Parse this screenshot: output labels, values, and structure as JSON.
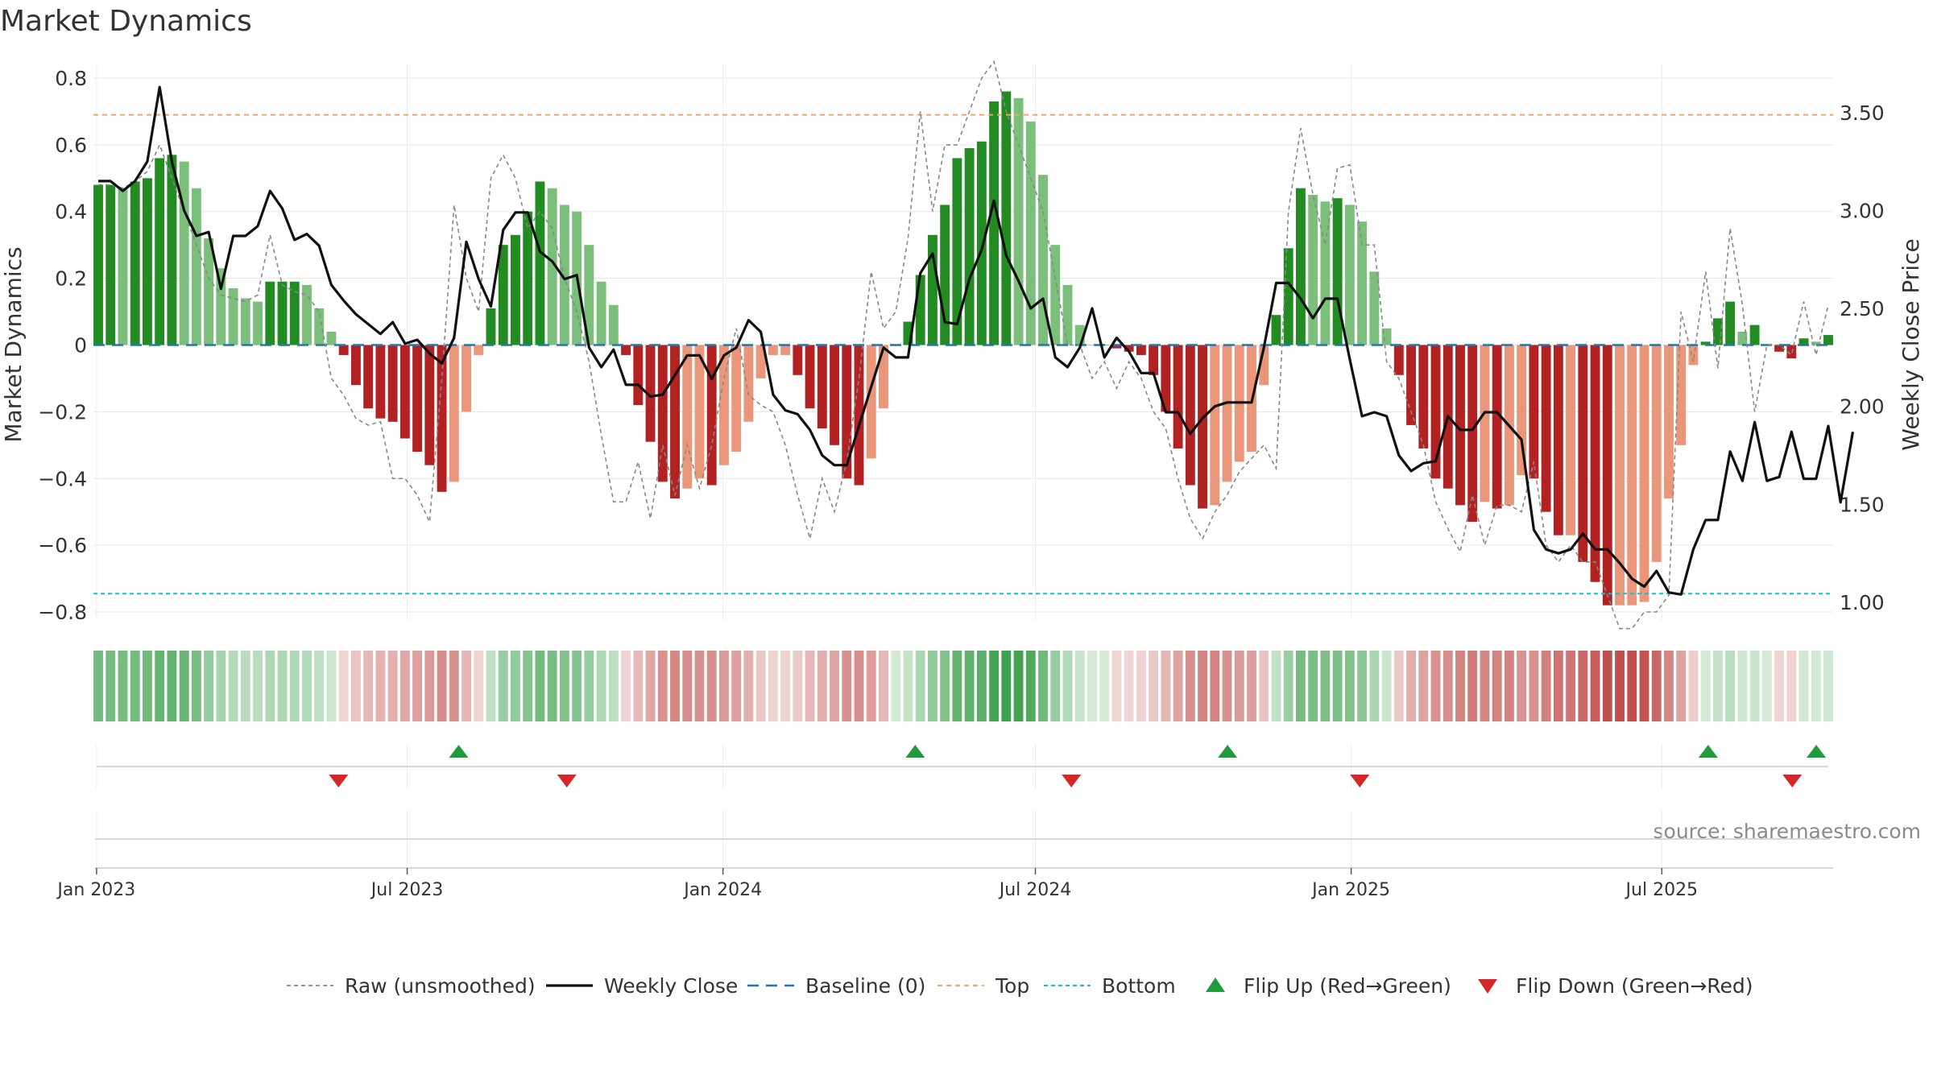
{
  "chart_data": {
    "type": "bar",
    "title": "Market Dynamics",
    "source": "source: sharemaestro.com",
    "y_left": {
      "label": "Market Dynamics",
      "range": [
        -0.85,
        0.8
      ],
      "ticks": [
        0.8,
        0.6,
        0.4,
        0.2,
        0,
        -0.2,
        -0.4,
        -0.6,
        -0.8
      ],
      "tick_labels": [
        "0.8",
        "0.6",
        "0.4",
        "0.2",
        "0",
        "−0.2",
        "−0.4",
        "−0.6",
        "−0.8"
      ]
    },
    "y_right": {
      "label": "Weekly Close Price",
      "range": [
        0.95,
        3.7
      ],
      "ticks": [
        3.5,
        3.0,
        2.5,
        2.0,
        1.5,
        1.0
      ],
      "tick_labels": [
        "3.50",
        "3.00",
        "2.50",
        "2.00",
        "1.50",
        "1.00"
      ]
    },
    "x_axis": {
      "start": "2023-01-02",
      "end": "2025-10-06",
      "ticks": [
        {
          "date": "2023-01-01",
          "label": "Jan 2023"
        },
        {
          "date": "2023-07-01",
          "label": "Jul 2023"
        },
        {
          "date": "2024-01-01",
          "label": "Jan 2024"
        },
        {
          "date": "2024-07-01",
          "label": "Jul 2024"
        },
        {
          "date": "2025-01-01",
          "label": "Jan 2025"
        },
        {
          "date": "2025-07-01",
          "label": "Jul 2025"
        }
      ]
    },
    "thresholds": {
      "top": 0.69,
      "bottom": -0.745,
      "baseline": 0
    },
    "series": [
      {
        "name": "Raw (unsmoothed)",
        "style": "dashed",
        "color": "#888888",
        "values": [
          0.48,
          0.48,
          0.47,
          0.49,
          0.52,
          0.6,
          0.5,
          0.4,
          0.3,
          0.2,
          0.15,
          0.14,
          0.13,
          0.15,
          0.33,
          0.18,
          0.16,
          0.15,
          0.1,
          -0.1,
          -0.15,
          -0.22,
          -0.24,
          -0.23,
          -0.4,
          -0.4,
          -0.45,
          -0.53,
          -0.1,
          0.42,
          0.2,
          0.1,
          0.5,
          0.57,
          0.5,
          0.35,
          0.4,
          0.35,
          0.2,
          0.1,
          -0.05,
          -0.27,
          -0.47,
          -0.47,
          -0.35,
          -0.52,
          -0.3,
          -0.45,
          -0.3,
          -0.43,
          -0.3,
          -0.1,
          0.05,
          -0.15,
          -0.18,
          -0.2,
          -0.3,
          -0.45,
          -0.58,
          -0.4,
          -0.5,
          -0.35,
          -0.1,
          0.22,
          0.05,
          0.1,
          0.32,
          0.7,
          0.4,
          0.6,
          0.6,
          0.7,
          0.8,
          0.85,
          0.7,
          0.6,
          0.5,
          0.4,
          0.2,
          0.0,
          0.0,
          -0.1,
          -0.05,
          -0.13,
          -0.05,
          -0.1,
          -0.2,
          -0.25,
          -0.4,
          -0.52,
          -0.58,
          -0.5,
          -0.45,
          -0.38,
          -0.34,
          -0.3,
          -0.37,
          0.4,
          0.65,
          0.45,
          0.3,
          0.53,
          0.54,
          0.3,
          0.3,
          -0.05,
          -0.1,
          -0.2,
          -0.3,
          -0.47,
          -0.55,
          -0.62,
          -0.45,
          -0.6,
          -0.48,
          -0.48,
          -0.5,
          -0.35,
          -0.6,
          -0.65,
          -0.6,
          -0.65,
          -0.65,
          -0.75,
          -0.85,
          -0.85,
          -0.8,
          -0.8,
          -0.75,
          0.1,
          -0.05,
          0.22,
          -0.07,
          0.35,
          0.12,
          -0.2,
          0.0,
          0.0,
          -0.03,
          0.13,
          -0.03,
          0.12
        ]
      },
      {
        "name": "Weekly Close",
        "style": "solid",
        "color": "#111111",
        "values": [
          3.15,
          3.15,
          3.1,
          3.15,
          3.25,
          3.63,
          3.25,
          3.0,
          2.87,
          2.89,
          2.6,
          2.87,
          2.87,
          2.92,
          3.1,
          3.01,
          2.85,
          2.88,
          2.82,
          2.62,
          2.54,
          2.47,
          2.42,
          2.37,
          2.43,
          2.32,
          2.34,
          2.27,
          2.22,
          2.35,
          2.84,
          2.65,
          2.51,
          2.9,
          2.99,
          2.99,
          2.79,
          2.74,
          2.65,
          2.67,
          2.3,
          2.2,
          2.29,
          2.11,
          2.11,
          2.05,
          2.06,
          2.16,
          2.26,
          2.26,
          2.14,
          2.26,
          2.3,
          2.44,
          2.38,
          2.06,
          1.98,
          1.96,
          1.88,
          1.75,
          1.7,
          1.7,
          1.9,
          2.1,
          2.3,
          2.25,
          2.25,
          2.68,
          2.78,
          2.43,
          2.42,
          2.65,
          2.8,
          3.05,
          2.77,
          2.64,
          2.5,
          2.55,
          2.25,
          2.2,
          2.3,
          2.5,
          2.25,
          2.35,
          2.28,
          2.17,
          2.17,
          1.97,
          1.97,
          1.86,
          1.94,
          2.0,
          2.02,
          2.02,
          2.02,
          2.3,
          2.63,
          2.63,
          2.55,
          2.45,
          2.55,
          2.55,
          2.24,
          1.95,
          1.97,
          1.95,
          1.75,
          1.67,
          1.71,
          1.72,
          1.95,
          1.88,
          1.88,
          1.97,
          1.97,
          1.9,
          1.83,
          1.37,
          1.27,
          1.25,
          1.27,
          1.35,
          1.27,
          1.27,
          1.2,
          1.12,
          1.08,
          1.16,
          1.05,
          1.04,
          1.27,
          1.42,
          1.42,
          1.77,
          1.62,
          1.92,
          1.62,
          1.64,
          1.87,
          1.63,
          1.63,
          1.9,
          1.51,
          1.87
        ]
      }
    ],
    "bars": {
      "name": "Market Dynamics",
      "values": [
        0.48,
        0.48,
        0.47,
        0.49,
        0.5,
        0.56,
        0.57,
        0.55,
        0.47,
        0.32,
        0.23,
        0.17,
        0.14,
        0.13,
        0.19,
        0.19,
        0.19,
        0.18,
        0.11,
        0.04,
        -0.03,
        -0.12,
        -0.19,
        -0.22,
        -0.23,
        -0.28,
        -0.32,
        -0.36,
        -0.44,
        -0.41,
        -0.2,
        -0.03,
        0.11,
        0.3,
        0.33,
        0.4,
        0.49,
        0.47,
        0.42,
        0.4,
        0.3,
        0.19,
        0.12,
        -0.03,
        -0.18,
        -0.29,
        -0.41,
        -0.46,
        -0.43,
        -0.4,
        -0.42,
        -0.36,
        -0.32,
        -0.23,
        -0.1,
        -0.03,
        -0.03,
        -0.09,
        -0.19,
        -0.25,
        -0.3,
        -0.4,
        -0.42,
        -0.34,
        -0.19,
        0.0,
        0.07,
        0.21,
        0.33,
        0.42,
        0.56,
        0.59,
        0.61,
        0.73,
        0.76,
        0.74,
        0.67,
        0.51,
        0.3,
        0.18,
        0.06,
        0.0,
        0.0,
        -0.01,
        -0.02,
        -0.03,
        -0.09,
        -0.2,
        -0.31,
        -0.42,
        -0.49,
        -0.48,
        -0.41,
        -0.35,
        -0.32,
        -0.12,
        0.09,
        0.29,
        0.47,
        0.45,
        0.43,
        0.44,
        0.42,
        0.37,
        0.22,
        0.05,
        -0.09,
        -0.24,
        -0.31,
        -0.4,
        -0.43,
        -0.48,
        -0.53,
        -0.47,
        -0.49,
        -0.48,
        -0.39,
        -0.4,
        -0.5,
        -0.57,
        -0.57,
        -0.65,
        -0.71,
        -0.78,
        -0.78,
        -0.78,
        -0.77,
        -0.65,
        -0.46,
        -0.3,
        -0.06,
        0.01,
        0.08,
        0.13,
        0.04,
        0.06,
        0.0,
        -0.02,
        -0.04,
        0.02,
        0.01,
        0.03
      ]
    },
    "flip_up_dates": [
      "2023-07-31",
      "2024-04-22",
      "2024-10-21",
      "2025-07-28",
      "2025-09-29"
    ],
    "flip_down_dates": [
      "2023-05-22",
      "2023-10-02",
      "2024-07-22",
      "2025-01-06",
      "2025-09-15"
    ],
    "colors": {
      "dark_green": "#228b22",
      "light_green": "#7bbf7b",
      "dark_red": "#b22222",
      "light_red": "#e9967a",
      "baseline": "#1f77b4",
      "top": "#f4a460",
      "bottom": "#17becf",
      "flip_up": "#1e9c3c",
      "flip_down": "#d62728"
    },
    "legend": [
      "Raw (unsmoothed)",
      "Weekly Close",
      "Baseline (0)",
      "Top",
      "Bottom",
      "Flip Up (Red→Green)",
      "Flip Down (Green→Red)"
    ]
  }
}
